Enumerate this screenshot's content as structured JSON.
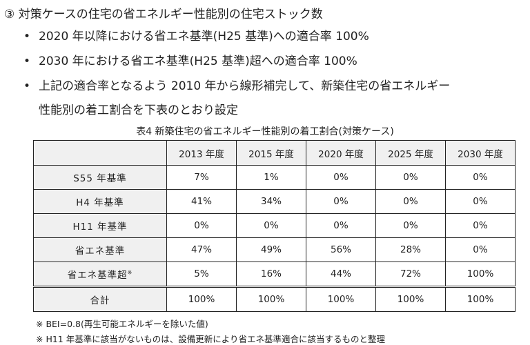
{
  "heading": "③ 対策ケースの住宅の省エネルギー性能別の住宅ストック数",
  "bullets": [
    "2020 年以降における省エネ基準(H25 基準)への適合率 100%",
    "2030 年における省エネ基準(H25 基準)超への適合率 100%",
    "上記の適合率となるよう 2010 年から線形補完して、新築住宅の省エネルギー",
    "性能別の着工割合を下表のとおり設定"
  ],
  "bullet_mark": "•",
  "caption": "表4 新築住宅の省エネルギー性能別の着工割合(対策ケース)",
  "table": {
    "columns": [
      "2013 年度",
      "2015 年度",
      "2020 年度",
      "2025 年度",
      "2030 年度"
    ],
    "rows": [
      {
        "label": "S55 年基準",
        "sup": "",
        "values": [
          "7%",
          "1%",
          "0%",
          "0%",
          "0%"
        ]
      },
      {
        "label": "H4 年基準",
        "sup": "",
        "values": [
          "41%",
          "34%",
          "0%",
          "0%",
          "0%"
        ]
      },
      {
        "label": "H11 年基準",
        "sup": "",
        "values": [
          "0%",
          "0%",
          "0%",
          "0%",
          "0%"
        ]
      },
      {
        "label": "省エネ基準",
        "sup": "",
        "values": [
          "47%",
          "49%",
          "56%",
          "28%",
          "0%"
        ]
      },
      {
        "label": "省エネ基準超",
        "sup": "※",
        "values": [
          "5%",
          "16%",
          "44%",
          "72%",
          "100%"
        ]
      },
      {
        "label": "合計",
        "sup": "",
        "values": [
          "100%",
          "100%",
          "100%",
          "100%",
          "100%"
        ]
      }
    ]
  },
  "notes": [
    "※ BEI=0.8(再生可能エネルギーを除いた値)",
    "※ H11 年基準に該当がないものは、設備更新により省エネ基準適合に該当するものと整理"
  ]
}
